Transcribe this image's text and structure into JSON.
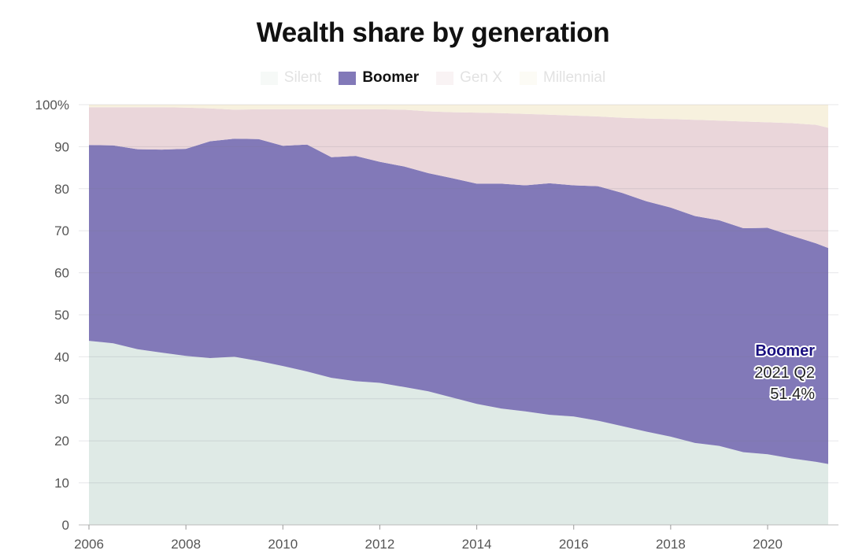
{
  "chart_data": {
    "type": "area",
    "stacked": true,
    "title": "Wealth share by generation",
    "xlabel": "",
    "ylabel": "",
    "ylim": [
      0,
      100
    ],
    "y_ticks": [
      "0",
      "10",
      "20",
      "30",
      "40",
      "50",
      "60",
      "70",
      "80",
      "90",
      "100%"
    ],
    "x_ticks": [
      "2006",
      "2008",
      "2010",
      "2012",
      "2014",
      "2016",
      "2018",
      "2020"
    ],
    "xlim": [
      2006,
      2021.25
    ],
    "grid": true,
    "legend_position": "top-center",
    "x": [
      2006,
      2006.5,
      2007,
      2007.5,
      2008,
      2008.5,
      2009,
      2009.5,
      2010,
      2010.5,
      2011,
      2011.5,
      2012,
      2012.5,
      2013,
      2013.5,
      2014,
      2014.5,
      2015,
      2015.5,
      2016,
      2016.5,
      2017,
      2017.5,
      2018,
      2018.5,
      2019,
      2019.5,
      2020,
      2020.5,
      2021,
      2021.25
    ],
    "series": [
      {
        "name": "Silent",
        "color": "#dfeae6",
        "highlighted": false,
        "values": [
          43.8,
          43.2,
          41.8,
          41,
          40.2,
          39.7,
          40,
          39,
          37.8,
          36.5,
          35,
          34.2,
          33.8,
          32.8,
          31.8,
          30.3,
          28.8,
          27.7,
          27,
          26.2,
          25.8,
          24.8,
          23.5,
          22.2,
          21,
          19.5,
          18.8,
          17.3,
          16.8,
          15.8,
          15,
          14.5
        ]
      },
      {
        "name": "Boomer",
        "color": "#8279b8",
        "highlighted": true,
        "values": [
          46.6,
          47.1,
          47.6,
          48.3,
          49.3,
          51.6,
          51.9,
          52.8,
          52.4,
          54.0,
          52.5,
          53.6,
          52.6,
          52.5,
          51.9,
          52.2,
          52.4,
          53.5,
          53.8,
          55.1,
          55.0,
          55.8,
          55.5,
          54.8,
          54.5,
          54.0,
          53.7,
          53.3,
          53.9,
          53.0,
          52.0,
          51.4
        ]
      },
      {
        "name": "Gen X",
        "color": "#ead6da",
        "highlighted": false,
        "values": [
          9.0,
          9.1,
          10.0,
          10.1,
          9.8,
          7.8,
          6.9,
          7.1,
          8.7,
          8.4,
          11.4,
          11.1,
          12.5,
          13.5,
          14.7,
          15.7,
          16.9,
          16.8,
          17.0,
          16.3,
          16.6,
          16.6,
          17.9,
          19.7,
          21.1,
          22.9,
          23.7,
          25.4,
          25.1,
          26.8,
          28.2,
          28.6
        ]
      },
      {
        "name": "Millennial",
        "color": "#f7f1de",
        "highlighted": false,
        "values": [
          0.6,
          0.6,
          0.6,
          0.6,
          0.7,
          0.9,
          1.2,
          1.1,
          1.1,
          1.1,
          1.1,
          1.1,
          1.1,
          1.2,
          1.6,
          1.8,
          1.9,
          2.0,
          2.2,
          2.4,
          2.6,
          2.8,
          3.1,
          3.3,
          3.4,
          3.6,
          3.8,
          4.0,
          4.2,
          4.4,
          4.8,
          5.5
        ]
      }
    ],
    "annotation": {
      "series": "Boomer",
      "period": "2021 Q2",
      "value": "51.4%",
      "color": "#1a1080"
    }
  }
}
